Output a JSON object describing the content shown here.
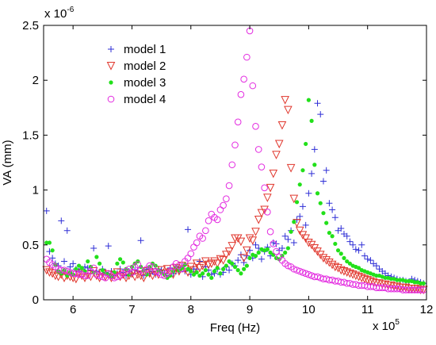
{
  "chart_data": {
    "type": "scatter",
    "xlabel": "Freq (Hz)",
    "ylabel": "VA (mm)",
    "x_exponent_label": {
      "base": "x 10",
      "power": "5"
    },
    "y_exponent_label": {
      "base": "x 10",
      "power": "-6"
    },
    "xlim": [
      5.5,
      12
    ],
    "ylim": [
      0,
      2.5
    ],
    "x_ticks": [
      6,
      7,
      8,
      9,
      10,
      11,
      12
    ],
    "x_tick_labels": [
      "6",
      "7",
      "8",
      "9",
      "10",
      "11",
      "12"
    ],
    "y_ticks": [
      0,
      0.5,
      1,
      1.5,
      2,
      2.5
    ],
    "y_tick_labels": [
      "0",
      "0.5",
      "1",
      "1.5",
      "2",
      "2.5"
    ],
    "legend_position": "top-left",
    "grid": false,
    "series": [
      {
        "name": "model 1",
        "marker": "plus",
        "color": "#2f2fd6",
        "x": [
          5.55,
          5.6,
          5.65,
          5.7,
          5.75,
          5.8,
          5.85,
          5.9,
          5.95,
          6.0,
          6.05,
          6.1,
          6.15,
          6.2,
          6.25,
          6.3,
          6.35,
          6.4,
          6.45,
          6.5,
          6.55,
          6.6,
          6.65,
          6.7,
          6.75,
          6.8,
          6.85,
          6.9,
          6.95,
          7.0,
          7.05,
          7.1,
          7.15,
          7.2,
          7.25,
          7.3,
          7.35,
          7.4,
          7.45,
          7.5,
          7.55,
          7.6,
          7.65,
          7.7,
          7.75,
          7.8,
          7.85,
          7.9,
          7.95,
          8.0,
          8.05,
          8.1,
          8.15,
          8.2,
          8.25,
          8.3,
          8.35,
          8.4,
          8.45,
          8.5,
          8.55,
          8.6,
          8.65,
          8.7,
          8.75,
          8.8,
          8.85,
          8.9,
          8.95,
          9.0,
          9.05,
          9.1,
          9.15,
          9.2,
          9.25,
          9.3,
          9.35,
          9.4,
          9.45,
          9.5,
          9.55,
          9.6,
          9.65,
          9.7,
          9.75,
          9.8,
          9.85,
          9.9,
          9.95,
          10.0,
          10.05,
          10.1,
          10.15,
          10.2,
          10.25,
          10.3,
          10.35,
          10.4,
          10.45,
          10.5,
          10.55,
          10.6,
          10.65,
          10.7,
          10.75,
          10.8,
          10.85,
          10.9,
          10.95,
          11.0,
          11.05,
          11.1,
          11.15,
          11.2,
          11.25,
          11.3,
          11.35,
          11.4,
          11.45,
          11.5,
          11.55,
          11.6,
          11.65,
          11.7,
          11.75,
          11.8,
          11.85,
          11.9,
          11.95
        ],
        "y": [
          0.81,
          0.44,
          0.38,
          0.33,
          0.31,
          0.72,
          0.35,
          0.63,
          0.3,
          0.33,
          0.28,
          0.26,
          0.28,
          0.3,
          0.29,
          0.27,
          0.47,
          0.26,
          0.23,
          0.28,
          0.25,
          0.49,
          0.26,
          0.22,
          0.24,
          0.28,
          0.25,
          0.22,
          0.26,
          0.23,
          0.27,
          0.26,
          0.54,
          0.22,
          0.28,
          0.24,
          0.26,
          0.23,
          0.28,
          0.27,
          0.24,
          0.22,
          0.29,
          0.24,
          0.26,
          0.27,
          0.3,
          0.26,
          0.64,
          0.23,
          0.28,
          0.28,
          0.35,
          0.21,
          0.3,
          0.27,
          0.23,
          0.24,
          0.28,
          0.23,
          0.25,
          0.3,
          0.27,
          0.33,
          0.31,
          0.36,
          0.41,
          0.34,
          0.4,
          0.45,
          0.38,
          0.5,
          0.47,
          0.37,
          0.44,
          0.48,
          0.4,
          0.52,
          0.51,
          0.45,
          0.47,
          0.58,
          0.55,
          0.63,
          0.52,
          0.73,
          0.76,
          0.85,
          0.68,
          0.97,
          1.15,
          1.37,
          1.79,
          1.69,
          1.08,
          1.18,
          0.88,
          0.82,
          0.75,
          0.63,
          0.65,
          0.6,
          0.58,
          0.53,
          0.5,
          0.46,
          0.45,
          0.5,
          0.4,
          0.37,
          0.36,
          0.33,
          0.31,
          0.28,
          0.26,
          0.24,
          0.22,
          0.21,
          0.2,
          0.19,
          0.18,
          0.18,
          0.17,
          0.16,
          0.19,
          0.18,
          0.17,
          0.16,
          0.15
        ]
      },
      {
        "name": "model 2",
        "marker": "triangle-down",
        "color": "#e0362c",
        "x": [
          5.55,
          5.6,
          5.65,
          5.7,
          5.75,
          5.8,
          5.85,
          5.9,
          5.95,
          6.0,
          6.05,
          6.1,
          6.15,
          6.2,
          6.25,
          6.3,
          6.35,
          6.4,
          6.45,
          6.5,
          6.55,
          6.6,
          6.65,
          6.7,
          6.75,
          6.8,
          6.85,
          6.9,
          6.95,
          7.0,
          7.05,
          7.1,
          7.15,
          7.2,
          7.25,
          7.3,
          7.35,
          7.4,
          7.45,
          7.5,
          7.55,
          7.6,
          7.65,
          7.7,
          7.75,
          7.8,
          7.85,
          7.9,
          7.95,
          8.0,
          8.05,
          8.1,
          8.15,
          8.2,
          8.25,
          8.3,
          8.35,
          8.4,
          8.45,
          8.5,
          8.55,
          8.6,
          8.65,
          8.7,
          8.75,
          8.8,
          8.85,
          8.9,
          8.95,
          9.0,
          9.05,
          9.1,
          9.15,
          9.2,
          9.25,
          9.3,
          9.35,
          9.4,
          9.45,
          9.5,
          9.55,
          9.6,
          9.65,
          9.7,
          9.75,
          9.8,
          9.85,
          9.9,
          9.95,
          10.0,
          10.05,
          10.1,
          10.15,
          10.2,
          10.25,
          10.3,
          10.35,
          10.4,
          10.45,
          10.5,
          10.55,
          10.6,
          10.65,
          10.7,
          10.75,
          10.8,
          10.85,
          10.9,
          10.95,
          11.0,
          11.05,
          11.1,
          11.15,
          11.2,
          11.25,
          11.3,
          11.35,
          11.4,
          11.45,
          11.5,
          11.55,
          11.6,
          11.65,
          11.7,
          11.75,
          11.8,
          11.85,
          11.9,
          11.95
        ],
        "y": [
          0.27,
          0.25,
          0.24,
          0.22,
          0.21,
          0.23,
          0.2,
          0.22,
          0.21,
          0.2,
          0.19,
          0.24,
          0.22,
          0.2,
          0.23,
          0.21,
          0.26,
          0.22,
          0.2,
          0.24,
          0.21,
          0.23,
          0.2,
          0.22,
          0.25,
          0.21,
          0.23,
          0.2,
          0.22,
          0.24,
          0.21,
          0.23,
          0.22,
          0.2,
          0.26,
          0.24,
          0.22,
          0.25,
          0.23,
          0.27,
          0.24,
          0.28,
          0.25,
          0.23,
          0.29,
          0.26,
          0.31,
          0.28,
          0.25,
          0.3,
          0.27,
          0.33,
          0.29,
          0.31,
          0.35,
          0.32,
          0.33,
          0.35,
          0.33,
          0.37,
          0.36,
          0.41,
          0.44,
          0.49,
          0.56,
          0.56,
          0.53,
          0.38,
          0.45,
          0.56,
          0.54,
          0.62,
          0.73,
          0.79,
          0.82,
          0.93,
          1.02,
          1.15,
          1.32,
          1.42,
          1.59,
          1.82,
          1.73,
          1.2,
          0.92,
          0.7,
          0.63,
          0.59,
          0.56,
          0.52,
          0.5,
          0.47,
          0.44,
          0.41,
          0.38,
          0.36,
          0.34,
          0.32,
          0.3,
          0.29,
          0.27,
          0.26,
          0.25,
          0.24,
          0.23,
          0.22,
          0.21,
          0.2,
          0.19,
          0.18,
          0.17,
          0.16,
          0.15,
          0.15,
          0.14,
          0.14,
          0.13,
          0.13,
          0.12,
          0.12,
          0.11,
          0.11,
          0.11,
          0.1,
          0.1,
          0.1,
          0.1,
          0.09,
          0.09
        ]
      },
      {
        "name": "model 3",
        "marker": "dot",
        "color": "#22e01a",
        "x": [
          5.55,
          5.6,
          5.65,
          5.7,
          5.75,
          5.8,
          5.85,
          5.9,
          5.95,
          6.0,
          6.05,
          6.1,
          6.15,
          6.2,
          6.25,
          6.3,
          6.35,
          6.4,
          6.45,
          6.5,
          6.55,
          6.6,
          6.65,
          6.7,
          6.75,
          6.8,
          6.85,
          6.9,
          6.95,
          7.0,
          7.05,
          7.1,
          7.15,
          7.2,
          7.25,
          7.3,
          7.35,
          7.4,
          7.45,
          7.5,
          7.55,
          7.6,
          7.65,
          7.7,
          7.75,
          7.8,
          7.85,
          7.9,
          7.95,
          8.0,
          8.05,
          8.1,
          8.15,
          8.2,
          8.25,
          8.3,
          8.35,
          8.4,
          8.45,
          8.5,
          8.55,
          8.6,
          8.65,
          8.7,
          8.75,
          8.8,
          8.85,
          8.9,
          8.95,
          9.0,
          9.05,
          9.1,
          9.15,
          9.2,
          9.25,
          9.3,
          9.35,
          9.4,
          9.45,
          9.5,
          9.55,
          9.6,
          9.65,
          9.7,
          9.75,
          9.8,
          9.85,
          9.9,
          9.95,
          10.0,
          10.05,
          10.1,
          10.15,
          10.2,
          10.25,
          10.3,
          10.35,
          10.4,
          10.45,
          10.5,
          10.55,
          10.6,
          10.65,
          10.7,
          10.75,
          10.8,
          10.85,
          10.9,
          10.95,
          11.0,
          11.05,
          11.1,
          11.15,
          11.2,
          11.25,
          11.3,
          11.35,
          11.4,
          11.45,
          11.5,
          11.55,
          11.6,
          11.65,
          11.7,
          11.75,
          11.8,
          11.85,
          11.9,
          11.95
        ],
        "y": [
          0.52,
          0.52,
          0.45,
          0.32,
          0.26,
          0.24,
          0.27,
          0.22,
          0.25,
          0.23,
          0.28,
          0.31,
          0.29,
          0.26,
          0.35,
          0.3,
          0.25,
          0.39,
          0.33,
          0.27,
          0.24,
          0.23,
          0.21,
          0.25,
          0.33,
          0.37,
          0.34,
          0.28,
          0.23,
          0.3,
          0.33,
          0.35,
          0.3,
          0.27,
          0.23,
          0.3,
          0.33,
          0.31,
          0.27,
          0.25,
          0.23,
          0.2,
          0.22,
          0.26,
          0.3,
          0.27,
          0.29,
          0.32,
          0.28,
          0.26,
          0.23,
          0.25,
          0.22,
          0.24,
          0.27,
          0.23,
          0.2,
          0.26,
          0.29,
          0.24,
          0.28,
          0.31,
          0.35,
          0.33,
          0.3,
          0.27,
          0.24,
          0.28,
          0.31,
          0.38,
          0.41,
          0.4,
          0.43,
          0.46,
          0.45,
          0.46,
          0.43,
          0.41,
          0.38,
          0.37,
          0.4,
          0.43,
          0.47,
          0.62,
          0.71,
          0.89,
          1.05,
          1.18,
          1.42,
          1.82,
          1.63,
          1.23,
          0.97,
          0.88,
          0.79,
          0.7,
          0.61,
          0.58,
          0.51,
          0.45,
          0.42,
          0.38,
          0.35,
          0.33,
          0.31,
          0.3,
          0.29,
          0.27,
          0.26,
          0.25,
          0.24,
          0.23,
          0.22,
          0.22,
          0.21,
          0.2,
          0.2,
          0.19,
          0.19,
          0.18,
          0.18,
          0.18,
          0.17,
          0.17,
          0.17,
          0.16,
          0.16,
          0.15,
          0.15
        ]
      },
      {
        "name": "model 4",
        "marker": "circle",
        "color": "#e32be0",
        "x": [
          5.55,
          5.6,
          5.65,
          5.7,
          5.75,
          5.8,
          5.85,
          5.9,
          5.95,
          6.0,
          6.05,
          6.1,
          6.15,
          6.2,
          6.25,
          6.3,
          6.35,
          6.4,
          6.45,
          6.5,
          6.55,
          6.6,
          6.65,
          6.7,
          6.75,
          6.8,
          6.85,
          6.9,
          6.95,
          7.0,
          7.05,
          7.1,
          7.15,
          7.2,
          7.25,
          7.3,
          7.35,
          7.4,
          7.45,
          7.5,
          7.55,
          7.6,
          7.65,
          7.7,
          7.75,
          7.8,
          7.85,
          7.9,
          7.95,
          8.0,
          8.05,
          8.1,
          8.15,
          8.2,
          8.25,
          8.3,
          8.35,
          8.4,
          8.45,
          8.5,
          8.55,
          8.6,
          8.65,
          8.7,
          8.75,
          8.8,
          8.85,
          8.9,
          8.95,
          9.0,
          9.05,
          9.1,
          9.15,
          9.2,
          9.25,
          9.3,
          9.35,
          9.4,
          9.45,
          9.5,
          9.55,
          9.6,
          9.65,
          9.7,
          9.75,
          9.8,
          9.85,
          9.9,
          9.95,
          10.0,
          10.05,
          10.1,
          10.15,
          10.2,
          10.25,
          10.3,
          10.35,
          10.4,
          10.45,
          10.5,
          10.55,
          10.6,
          10.65,
          10.7,
          10.75,
          10.8,
          10.85,
          10.9,
          10.95,
          11.0,
          11.05,
          11.1,
          11.15,
          11.2,
          11.25,
          11.3,
          11.35,
          11.4,
          11.45,
          11.5,
          11.55,
          11.6,
          11.65,
          11.7,
          11.75,
          11.8,
          11.85,
          11.9,
          11.95
        ],
        "y": [
          0.37,
          0.34,
          0.32,
          0.3,
          0.28,
          0.27,
          0.27,
          0.26,
          0.25,
          0.24,
          0.24,
          0.23,
          0.23,
          0.22,
          0.22,
          0.26,
          0.29,
          0.23,
          0.22,
          0.21,
          0.2,
          0.24,
          0.22,
          0.2,
          0.21,
          0.22,
          0.24,
          0.26,
          0.28,
          0.25,
          0.3,
          0.32,
          0.27,
          0.25,
          0.28,
          0.31,
          0.3,
          0.26,
          0.25,
          0.23,
          0.22,
          0.24,
          0.26,
          0.3,
          0.33,
          0.31,
          0.28,
          0.35,
          0.38,
          0.42,
          0.48,
          0.52,
          0.58,
          0.56,
          0.63,
          0.72,
          0.78,
          0.75,
          0.73,
          0.82,
          0.86,
          0.92,
          1.04,
          1.23,
          1.41,
          1.62,
          1.87,
          2.01,
          2.21,
          2.45,
          1.95,
          1.58,
          1.37,
          1.21,
          1.02,
          0.8,
          0.62,
          0.51,
          0.44,
          0.39,
          0.36,
          0.33,
          0.31,
          0.3,
          0.28,
          0.27,
          0.26,
          0.25,
          0.24,
          0.23,
          0.22,
          0.21,
          0.21,
          0.2,
          0.19,
          0.19,
          0.18,
          0.18,
          0.17,
          0.17,
          0.16,
          0.16,
          0.15,
          0.15,
          0.14,
          0.14,
          0.13,
          0.13,
          0.13,
          0.12,
          0.12,
          0.12,
          0.11,
          0.11,
          0.11,
          0.11,
          0.1,
          0.1,
          0.1,
          0.1,
          0.1,
          0.09,
          0.09,
          0.09,
          0.09,
          0.09,
          0.09,
          0.09,
          0.09
        ]
      }
    ]
  }
}
